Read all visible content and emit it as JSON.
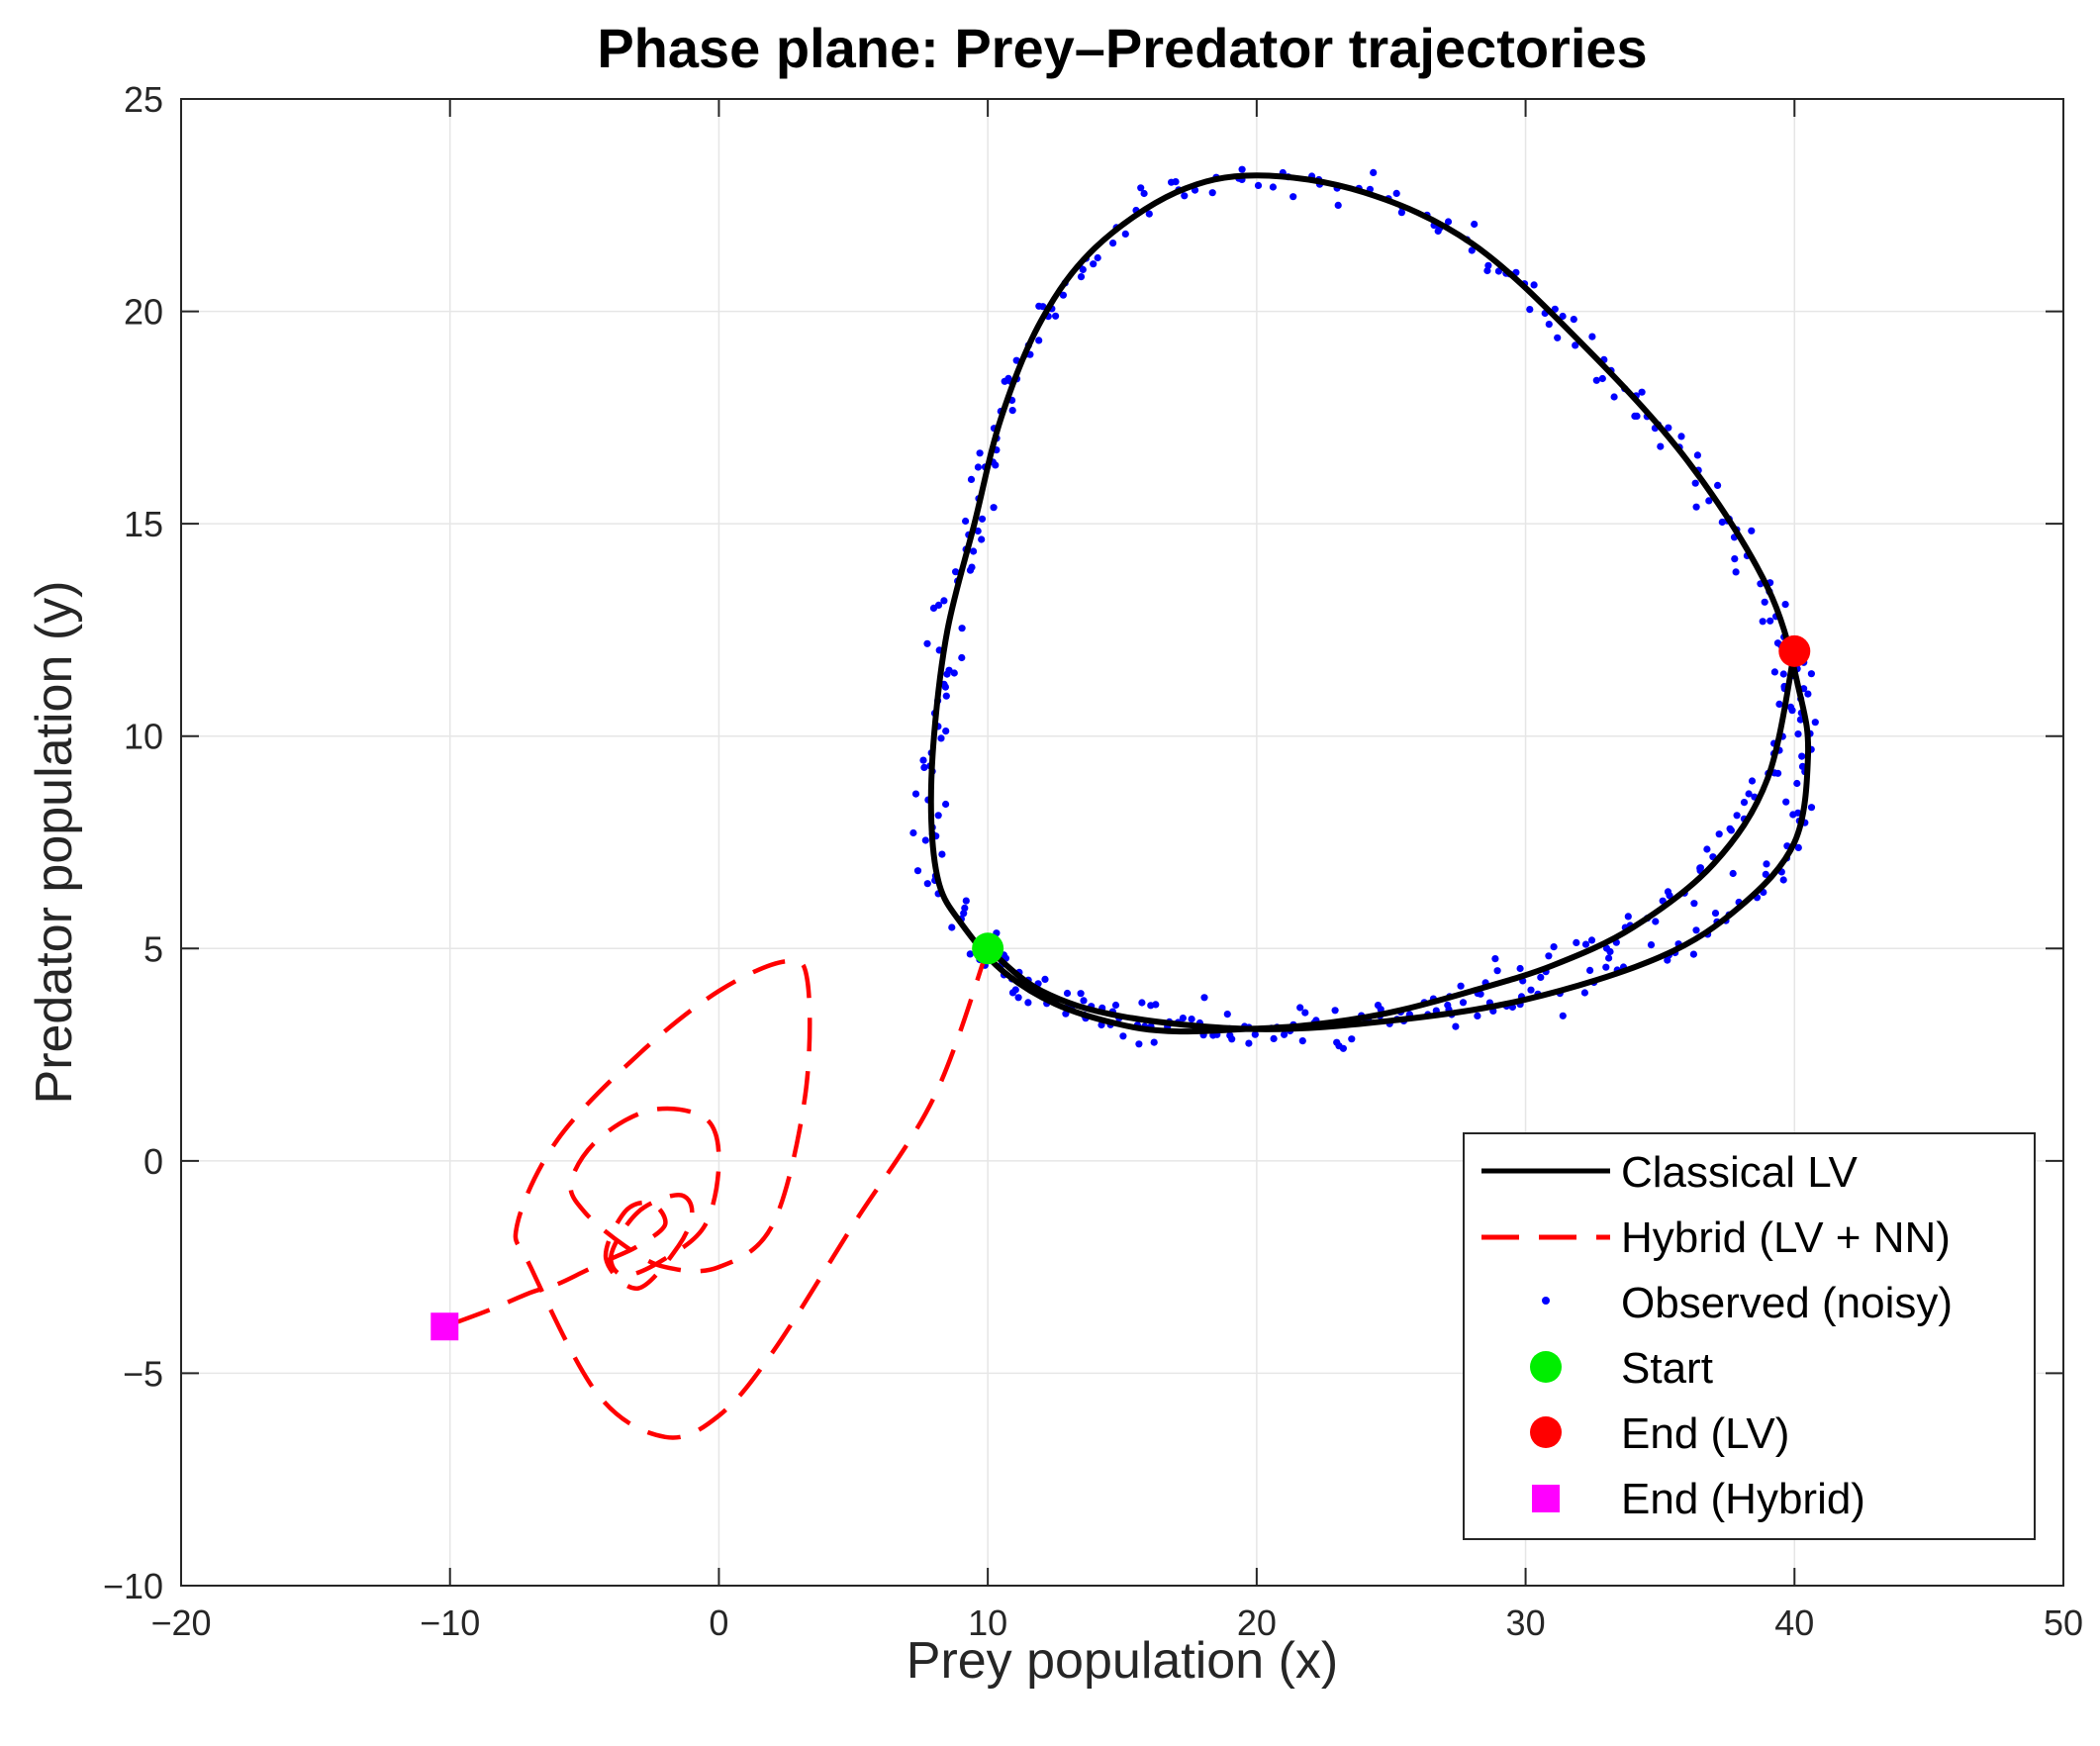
{
  "chart_data": {
    "type": "line",
    "title": "Phase plane: Prey–Predator trajectories",
    "xlabel": "Prey population (x)",
    "ylabel": "Predator population (y)",
    "xlim": [
      -20,
      50
    ],
    "ylim": [
      -10,
      25
    ],
    "xticks": [
      -20,
      -10,
      0,
      10,
      20,
      30,
      40,
      50
    ],
    "yticks": [
      -10,
      -5,
      0,
      5,
      10,
      15,
      20,
      25
    ],
    "xtick_labels": [
      "−20",
      "−10",
      "0",
      "10",
      "20",
      "30",
      "40",
      "50"
    ],
    "ytick_labels": [
      "−10",
      "−5",
      "0",
      "5",
      "10",
      "15",
      "20",
      "25"
    ],
    "grid": true,
    "legend_position": "bottom-right",
    "series": [
      {
        "name": "Classical LV",
        "style": "solid",
        "color": "#000000",
        "x": [
          10,
          12,
          15,
          20,
          25,
          30,
          35,
          38,
          40,
          40.5,
          40.2,
          39,
          36,
          32,
          28,
          24,
          20,
          17,
          14,
          12,
          10.5,
          9.5,
          8.5,
          8,
          7.9,
          8.2,
          9,
          10.5,
          12.5,
          15,
          17,
          19.5,
          22,
          25,
          28,
          31,
          34,
          37,
          39,
          40
        ],
        "y": [
          5,
          4,
          3.4,
          3.1,
          3.3,
          3.8,
          4.8,
          6,
          7.5,
          9.5,
          11,
          13.5,
          16.5,
          19.3,
          21.6,
          22.8,
          23.2,
          22.8,
          21.5,
          19.8,
          17.5,
          15,
          12.5,
          10,
          8,
          6.5,
          5.6,
          4.5,
          3.7,
          3.2,
          3.05,
          3.1,
          3.2,
          3.5,
          4,
          4.6,
          5.5,
          7,
          9,
          12
        ]
      },
      {
        "name": "Hybrid (LV + NN)",
        "style": "dashed",
        "color": "#ff0000",
        "x": [
          10,
          8,
          5,
          2,
          0,
          -2,
          -4.5,
          -7,
          -7.5,
          -6,
          -3,
          0,
          2.5,
          3.3,
          3.2,
          2,
          0,
          -2,
          -3.5,
          -5,
          -5.5,
          -4.5,
          -2.5,
          -0.5,
          0,
          -0.5,
          -2,
          -3.5,
          -4,
          -3,
          -1.5,
          -1,
          -1.5,
          -3,
          -4.2,
          -3.5,
          -2.5,
          -2,
          -3,
          -4,
          -5,
          -6,
          -7,
          -8.5,
          -10.2
        ],
        "y": [
          5,
          1.5,
          -1.5,
          -4.5,
          -6,
          -6.5,
          -5.5,
          -2.5,
          -1.5,
          0.5,
          2.5,
          4,
          4.7,
          4.2,
          1.5,
          -1.5,
          -2.5,
          -2.5,
          -2,
          -1.2,
          -0.5,
          0.5,
          1.2,
          1,
          0,
          -1.5,
          -2.3,
          -2.7,
          -2.2,
          -1.2,
          -0.8,
          -1.2,
          -2,
          -3,
          -2.3,
          -1.2,
          -1,
          -1.5,
          -2,
          -2.3,
          -2.6,
          -2.9,
          -3.1,
          -3.5,
          -3.9
        ]
      }
    ],
    "observed": {
      "name": "Observed (noisy)",
      "color": "#0000ff",
      "count": 420,
      "noise_sd": 0.8
    },
    "markers": [
      {
        "name": "Start",
        "shape": "circle",
        "color": "#00ee00",
        "x": 10,
        "y": 5
      },
      {
        "name": "End (LV)",
        "shape": "circle",
        "color": "#ff0000",
        "x": 40,
        "y": 12
      },
      {
        "name": "End (Hybrid)",
        "shape": "square",
        "color": "#ff00ff",
        "x": -10.2,
        "y": -3.9
      }
    ],
    "legend": [
      "Classical LV",
      "Hybrid (LV + NN)",
      "Observed (noisy)",
      "Start",
      "End (LV)",
      "End (Hybrid)"
    ]
  }
}
